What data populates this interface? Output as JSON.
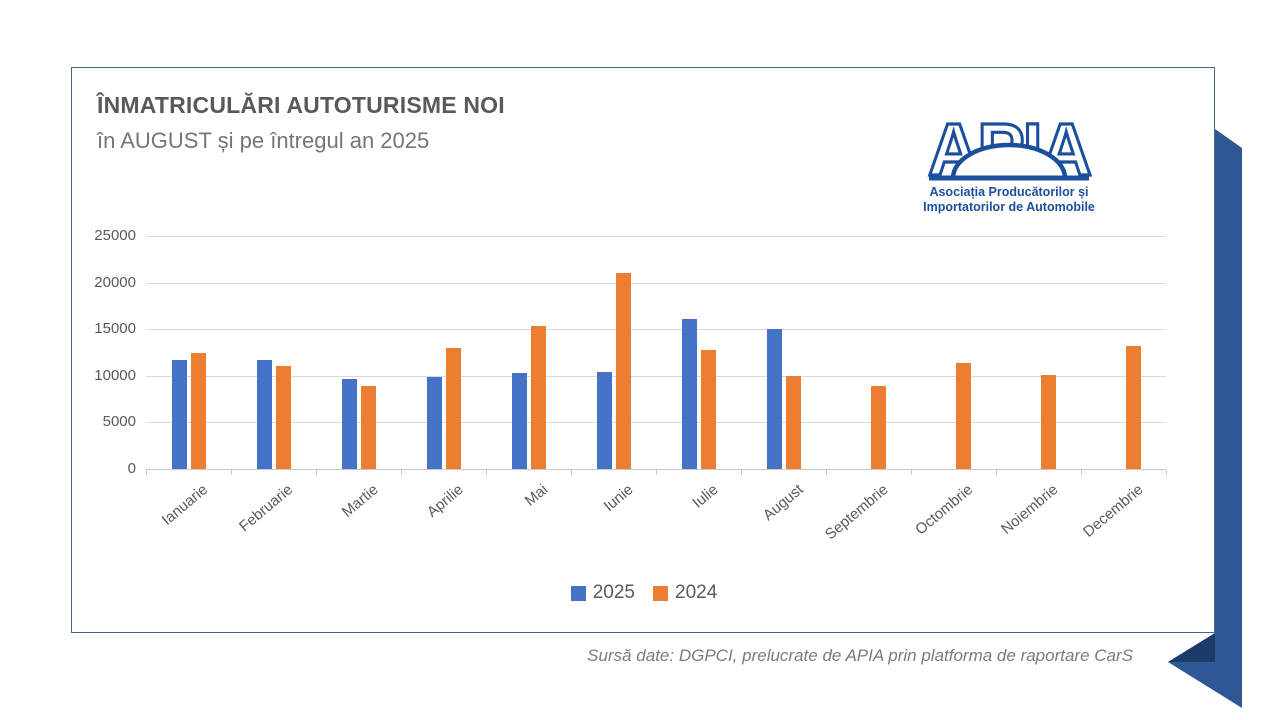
{
  "header": {
    "title": "ÎNMATRICULĂRI AUTOTURISME NOI",
    "subtitle": "în AUGUST și pe întregul an 2025"
  },
  "logo": {
    "acronym": "APIA",
    "caption_line1": "Asociația Producătorilor și",
    "caption_line2": "Importatorilor de Automobile",
    "color": "#1B4F9E"
  },
  "chart_data": {
    "type": "bar",
    "title": "",
    "xlabel": "",
    "ylabel": "",
    "categories": [
      "Ianuarie",
      "Februarie",
      "Martie",
      "Aprilie",
      "Mai",
      "Iunie",
      "Iulie",
      "August",
      "Septembrie",
      "Octombrie",
      "Noiembrie",
      "Decembrie"
    ],
    "series": [
      {
        "name": "2025",
        "color": "#4472C4",
        "values": [
          11700,
          11700,
          9700,
          9850,
          10250,
          10400,
          16100,
          15000,
          null,
          null,
          null,
          null
        ]
      },
      {
        "name": "2024",
        "color": "#ED7D31",
        "values": [
          12400,
          11050,
          8900,
          13000,
          15300,
          21000,
          12750,
          9950,
          8900,
          11400,
          10050,
          13250
        ]
      }
    ],
    "ylim": [
      0,
      25000
    ],
    "ytick_step": 5000,
    "grid": true,
    "legend_position": "bottom"
  },
  "footer": {
    "source": "Sursă date: DGPCI, prelucrate de APIA prin platforma de raportare CarS"
  },
  "decor": {
    "ribbon_color": "#2E5795",
    "ribbon_fold_color": "#1D3B69"
  }
}
